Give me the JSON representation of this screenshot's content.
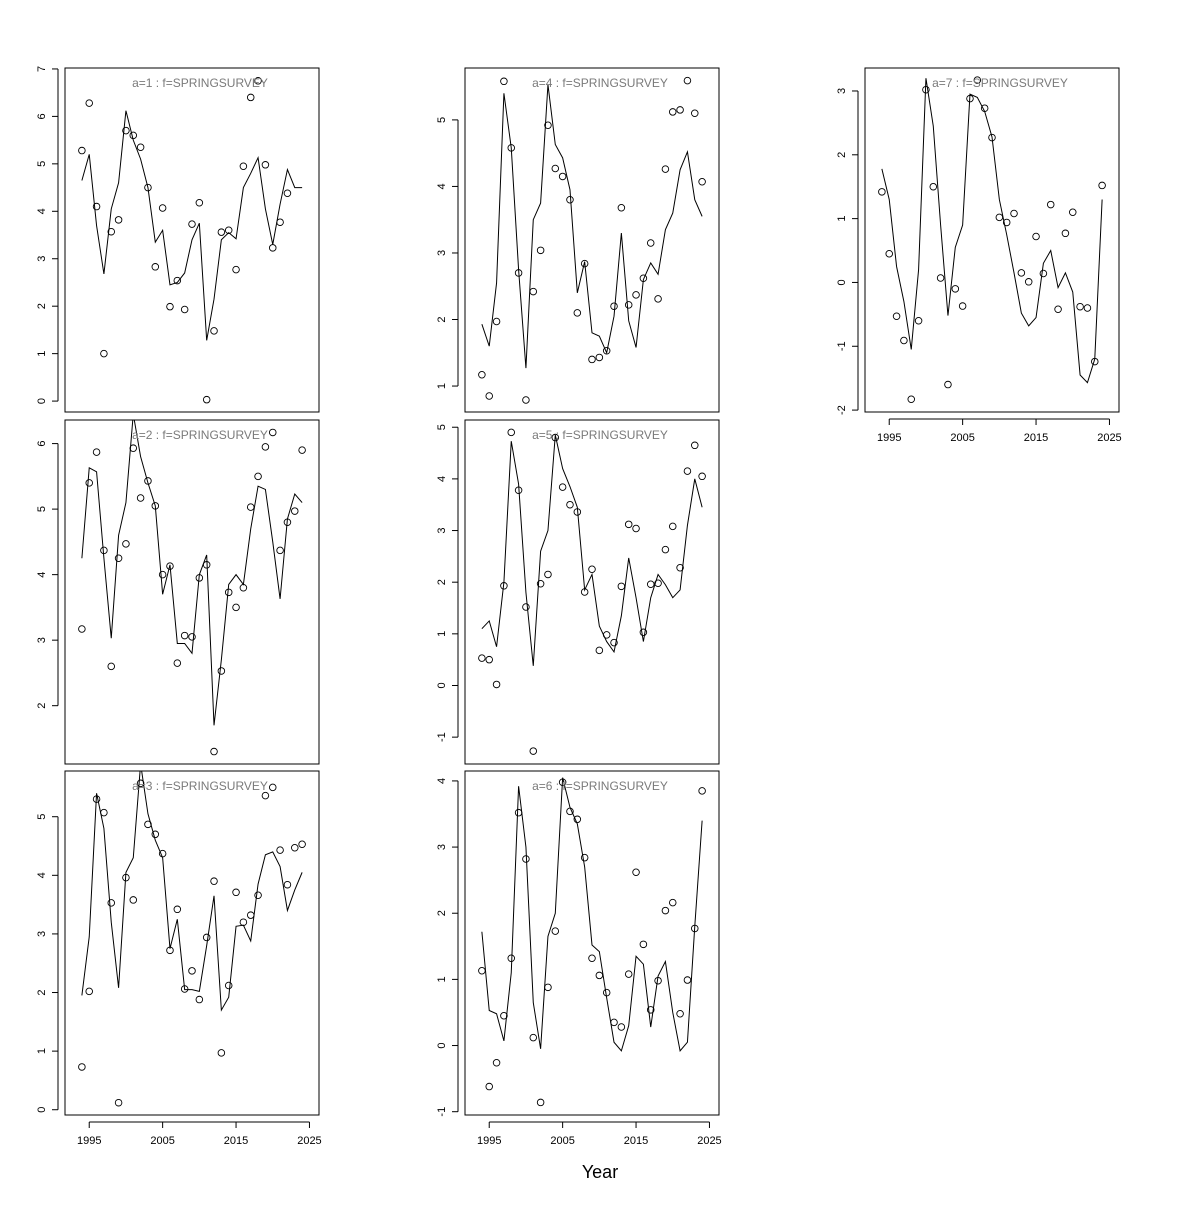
{
  "xlabel": "Year",
  "chart_data": [
    {
      "type": "line",
      "title": "a=1  :  f=SPRINGSURVEY",
      "show_xaxis": false,
      "x": [
        1994,
        1995,
        1996,
        1997,
        1998,
        1999,
        2000,
        2001,
        2002,
        2003,
        2004,
        2005,
        2006,
        2007,
        2008,
        2009,
        2010,
        2011,
        2012,
        2013,
        2014,
        2015,
        2016,
        2017,
        2018,
        2019,
        2020,
        2021,
        2022,
        2023,
        2024
      ],
      "xlim": [
        1991.7,
        2026.3
      ],
      "xticks": [
        1995,
        2005,
        2015,
        2025
      ],
      "ylim": [
        -0.23,
        7.02
      ],
      "yticks": [
        0,
        1,
        2,
        3,
        4,
        5,
        6,
        7
      ],
      "series": [
        {
          "style": "points",
          "color": "#000000",
          "values": [
            5.28,
            6.28,
            4.1,
            1.0,
            3.57,
            3.82,
            5.7,
            5.6,
            5.35,
            4.5,
            2.83,
            4.07,
            1.99,
            2.54,
            1.93,
            3.73,
            4.18,
            0.03,
            1.48,
            3.56,
            3.6,
            2.77,
            4.95,
            6.4,
            6.75,
            4.98,
            3.23,
            3.77,
            4.38,
            null,
            null
          ]
        },
        {
          "style": "line",
          "color": "#000000",
          "values": [
            4.65,
            5.2,
            3.7,
            2.68,
            4.05,
            4.6,
            6.12,
            5.5,
            5.1,
            4.5,
            3.35,
            3.6,
            2.45,
            2.5,
            2.7,
            3.4,
            3.75,
            1.28,
            2.15,
            3.4,
            3.55,
            3.42,
            4.5,
            4.8,
            5.13,
            4.05,
            3.3,
            4.15,
            4.88,
            4.5,
            4.5
          ]
        }
      ]
    },
    {
      "type": "line",
      "title": "a=2  :  f=SPRINGSURVEY",
      "show_xaxis": false,
      "x": [
        1994,
        1995,
        1996,
        1997,
        1998,
        1999,
        2000,
        2001,
        2002,
        2003,
        2004,
        2005,
        2006,
        2007,
        2008,
        2009,
        2010,
        2011,
        2012,
        2013,
        2014,
        2015,
        2016,
        2017,
        2018,
        2019,
        2020,
        2021,
        2022,
        2023,
        2024
      ],
      "xlim": [
        1991.7,
        2026.3
      ],
      "xticks": [
        1995,
        2005,
        2015,
        2025
      ],
      "ylim": [
        1.11,
        6.36
      ],
      "yticks": [
        2,
        3,
        4,
        5,
        6
      ],
      "series": [
        {
          "style": "points",
          "color": "#000000",
          "values": [
            3.17,
            5.4,
            5.87,
            4.37,
            2.6,
            4.25,
            4.47,
            5.93,
            5.17,
            5.43,
            5.05,
            4.0,
            4.13,
            2.65,
            3.07,
            3.05,
            3.95,
            4.15,
            1.3,
            2.53,
            3.73,
            3.5,
            3.8,
            5.03,
            5.5,
            5.95,
            6.17,
            4.37,
            4.8,
            4.97,
            5.9
          ]
        },
        {
          "style": "line",
          "color": "#000000",
          "values": [
            4.25,
            5.63,
            5.57,
            4.25,
            3.03,
            4.6,
            5.1,
            6.45,
            5.8,
            5.4,
            5.05,
            3.7,
            4.15,
            2.95,
            2.95,
            2.8,
            4.0,
            4.3,
            1.7,
            2.7,
            3.85,
            4.0,
            3.85,
            4.7,
            5.35,
            5.3,
            4.5,
            3.63,
            4.85,
            5.23,
            5.1
          ]
        }
      ]
    },
    {
      "type": "line",
      "title": "a=3  :  f=SPRINGSURVEY",
      "show_xaxis": true,
      "x": [
        1994,
        1995,
        1996,
        1997,
        1998,
        1999,
        2000,
        2001,
        2002,
        2003,
        2004,
        2005,
        2006,
        2007,
        2008,
        2009,
        2010,
        2011,
        2012,
        2013,
        2014,
        2015,
        2016,
        2017,
        2018,
        2019,
        2020,
        2021,
        2022,
        2023,
        2024
      ],
      "xlim": [
        1991.7,
        2026.3
      ],
      "xticks": [
        1995,
        2005,
        2015,
        2025
      ],
      "ylim": [
        -0.09,
        5.78
      ],
      "yticks": [
        0,
        1,
        2,
        3,
        4,
        5
      ],
      "series": [
        {
          "style": "points",
          "color": "#000000",
          "values": [
            0.73,
            2.02,
            5.3,
            5.07,
            3.53,
            0.12,
            3.96,
            3.58,
            5.57,
            4.87,
            4.7,
            4.37,
            2.72,
            3.42,
            2.06,
            2.37,
            1.88,
            2.94,
            3.9,
            0.97,
            2.12,
            3.71,
            3.2,
            3.32,
            3.66,
            5.36,
            5.5,
            4.43,
            3.84,
            4.47,
            4.53
          ]
        },
        {
          "style": "line",
          "color": "#000000",
          "values": [
            1.95,
            2.95,
            5.4,
            4.8,
            3.2,
            2.08,
            4.05,
            4.3,
            5.9,
            5.05,
            4.6,
            4.3,
            2.75,
            3.25,
            2.05,
            2.05,
            2.02,
            2.8,
            3.65,
            1.7,
            1.92,
            3.13,
            3.15,
            2.88,
            3.85,
            4.35,
            4.4,
            4.15,
            3.4,
            3.75,
            4.05
          ]
        }
      ]
    },
    {
      "type": "line",
      "title": "a=4  :  f=SPRINGSURVEY",
      "show_xaxis": false,
      "x": [
        1994,
        1995,
        1996,
        1997,
        1998,
        1999,
        2000,
        2001,
        2002,
        2003,
        2004,
        2005,
        2006,
        2007,
        2008,
        2009,
        2010,
        2011,
        2012,
        2013,
        2014,
        2015,
        2016,
        2017,
        2018,
        2019,
        2020,
        2021,
        2022,
        2023,
        2024
      ],
      "xlim": [
        1991.7,
        2026.3
      ],
      "xticks": [
        1995,
        2005,
        2015,
        2025
      ],
      "ylim": [
        0.61,
        5.78
      ],
      "yticks": [
        1,
        2,
        3,
        4,
        5
      ],
      "series": [
        {
          "style": "points",
          "color": "#000000",
          "values": [
            1.17,
            0.85,
            1.97,
            5.58,
            4.58,
            2.7,
            0.79,
            2.42,
            3.04,
            4.92,
            4.27,
            4.15,
            3.8,
            2.1,
            2.84,
            1.4,
            1.43,
            1.53,
            2.2,
            3.68,
            2.22,
            2.37,
            2.62,
            3.15,
            2.31,
            4.26,
            5.12,
            5.15,
            5.59,
            5.1,
            4.07
          ]
        },
        {
          "style": "line",
          "color": "#000000",
          "values": [
            1.93,
            1.6,
            2.55,
            5.4,
            4.58,
            2.75,
            1.27,
            3.5,
            3.75,
            5.53,
            4.63,
            4.43,
            3.95,
            2.4,
            2.87,
            1.8,
            1.75,
            1.5,
            2.05,
            3.3,
            1.98,
            1.58,
            2.6,
            2.85,
            2.68,
            3.35,
            3.6,
            4.25,
            4.52,
            3.8,
            3.55
          ]
        }
      ]
    },
    {
      "type": "line",
      "title": "a=5  :  f=SPRINGSURVEY",
      "show_xaxis": false,
      "x": [
        1994,
        1995,
        1996,
        1997,
        1998,
        1999,
        2000,
        2001,
        2002,
        2003,
        2004,
        2005,
        2006,
        2007,
        2008,
        2009,
        2010,
        2011,
        2012,
        2013,
        2014,
        2015,
        2016,
        2017,
        2018,
        2019,
        2020,
        2021,
        2022,
        2023,
        2024
      ],
      "xlim": [
        1991.7,
        2026.3
      ],
      "xticks": [
        1995,
        2005,
        2015,
        2025
      ],
      "ylim": [
        -1.52,
        5.14
      ],
      "yticks": [
        -1,
        0,
        1,
        2,
        3,
        4,
        5
      ],
      "series": [
        {
          "style": "points",
          "color": "#000000",
          "values": [
            0.53,
            0.5,
            0.02,
            1.93,
            4.9,
            3.78,
            1.52,
            -1.27,
            1.97,
            2.15,
            4.8,
            3.84,
            3.5,
            3.36,
            1.81,
            2.25,
            0.68,
            0.98,
            0.83,
            1.92,
            3.12,
            3.04,
            1.03,
            1.96,
            1.98,
            2.63,
            3.08,
            2.28,
            4.15,
            4.65,
            4.05
          ]
        },
        {
          "style": "line",
          "color": "#000000",
          "values": [
            1.1,
            1.25,
            0.75,
            2.0,
            4.73,
            3.9,
            1.8,
            0.38,
            2.6,
            3.0,
            4.85,
            4.2,
            3.85,
            3.45,
            1.85,
            2.15,
            1.15,
            0.85,
            0.65,
            1.35,
            2.47,
            1.7,
            0.85,
            1.7,
            2.15,
            1.95,
            1.7,
            1.85,
            3.1,
            4.0,
            3.45
          ]
        }
      ]
    },
    {
      "type": "line",
      "title": "a=6  :  f=SPRINGSURVEY",
      "show_xaxis": true,
      "x": [
        1994,
        1995,
        1996,
        1997,
        1998,
        1999,
        2000,
        2001,
        2002,
        2003,
        2004,
        2005,
        2006,
        2007,
        2008,
        2009,
        2010,
        2011,
        2012,
        2013,
        2014,
        2015,
        2016,
        2017,
        2018,
        2019,
        2020,
        2021,
        2022,
        2023,
        2024
      ],
      "xlim": [
        1991.7,
        2026.3
      ],
      "xticks": [
        1995,
        2005,
        2015,
        2025
      ],
      "ylim": [
        -1.05,
        4.15
      ],
      "yticks": [
        -1,
        0,
        1,
        2,
        3,
        4
      ],
      "series": [
        {
          "style": "points",
          "color": "#000000",
          "values": [
            1.13,
            -0.62,
            -0.26,
            0.45,
            1.32,
            3.52,
            2.82,
            0.12,
            -0.86,
            0.88,
            1.73,
            3.98,
            3.54,
            3.42,
            2.84,
            1.32,
            1.06,
            0.8,
            0.35,
            0.28,
            1.08,
            2.62,
            1.53,
            0.54,
            0.98,
            2.04,
            2.16,
            0.48,
            0.99,
            1.77,
            3.85
          ]
        },
        {
          "style": "line",
          "color": "#000000",
          "values": [
            1.72,
            0.53,
            0.48,
            0.07,
            1.1,
            3.92,
            3.0,
            0.65,
            -0.05,
            1.65,
            2.0,
            4.05,
            3.6,
            3.35,
            2.7,
            1.52,
            1.42,
            0.72,
            0.05,
            -0.08,
            0.3,
            1.35,
            1.23,
            0.28,
            1.05,
            1.27,
            0.5,
            -0.08,
            0.05,
            1.8,
            3.4
          ]
        }
      ]
    },
    {
      "type": "line",
      "title": "a=7  :  f=SPRINGSURVEY",
      "show_xaxis": true,
      "x": [
        1994,
        1995,
        1996,
        1997,
        1998,
        1999,
        2000,
        2001,
        2002,
        2003,
        2004,
        2005,
        2006,
        2007,
        2008,
        2009,
        2010,
        2011,
        2012,
        2013,
        2014,
        2015,
        2016,
        2017,
        2018,
        2019,
        2020,
        2021,
        2022,
        2023,
        2024
      ],
      "xlim": [
        1991.7,
        2026.3
      ],
      "xticks": [
        1995,
        2005,
        2015,
        2025
      ],
      "ylim": [
        -2.03,
        3.36
      ],
      "yticks": [
        -2,
        -1,
        0,
        1,
        2,
        3
      ],
      "series": [
        {
          "style": "points",
          "color": "#000000",
          "values": [
            1.42,
            0.45,
            -0.53,
            -0.91,
            -1.83,
            -0.6,
            3.02,
            1.5,
            0.07,
            -1.6,
            -0.1,
            -0.37,
            2.88,
            3.17,
            2.73,
            2.27,
            1.02,
            0.94,
            1.08,
            0.15,
            0.01,
            0.72,
            0.14,
            1.22,
            -0.42,
            0.77,
            1.1,
            -0.38,
            -0.4,
            -1.24,
            1.52
          ]
        },
        {
          "style": "line",
          "color": "#000000",
          "values": [
            1.78,
            1.3,
            0.25,
            -0.3,
            -1.05,
            0.2,
            3.2,
            2.45,
            0.9,
            -0.52,
            0.55,
            0.9,
            2.95,
            2.9,
            2.68,
            2.28,
            1.3,
            0.75,
            0.15,
            -0.48,
            -0.68,
            -0.55,
            0.3,
            0.5,
            -0.08,
            0.15,
            -0.15,
            -1.45,
            -1.57,
            -1.2,
            1.3
          ]
        }
      ]
    }
  ]
}
